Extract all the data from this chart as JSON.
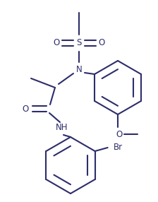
{
  "bg_color": "#ffffff",
  "line_color": "#2d2d6b",
  "line_width": 1.5,
  "font_size": 8.5,
  "figsize": [
    2.24,
    2.86
  ],
  "dpi": 100,
  "xlim": [
    0,
    224
  ],
  "ylim": [
    0,
    286
  ]
}
